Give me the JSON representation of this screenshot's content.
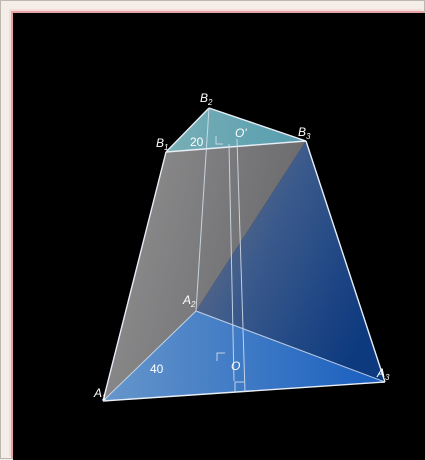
{
  "figure": {
    "type": "frustum-triangular",
    "labels": {
      "B2": {
        "base": "B",
        "sub": "2"
      },
      "B1": {
        "base": "B",
        "sub": "1"
      },
      "B3": {
        "base": "B",
        "sub": "3"
      },
      "A2": {
        "base": "A",
        "sub": "2"
      },
      "A1": {
        "base": "A",
        "sub": "1"
      },
      "A3": {
        "base": "A",
        "sub": "3"
      },
      "O_prime": "O'",
      "O": "O"
    },
    "measures": {
      "top_label": "20",
      "bottom_label": "40"
    },
    "colors": {
      "background": "#000000",
      "edge": "#e8eef6",
      "top_face": "#6fb5c0",
      "bottom_face": "#3c86d8",
      "left_face": "#8f8f8f",
      "right_face": "#1f4f98"
    }
  }
}
